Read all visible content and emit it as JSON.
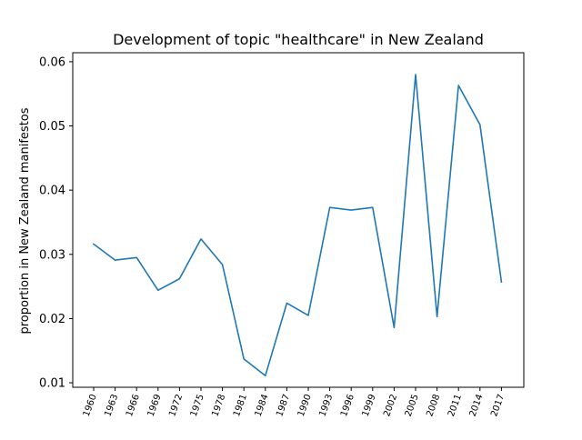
{
  "chart_data": {
    "type": "line",
    "title": "Development of topic \"healthcare\" in New Zealand",
    "xlabel": "",
    "ylabel": "proportion in New Zealand manifestos",
    "x": [
      "1960",
      "1963",
      "1966",
      "1969",
      "1972",
      "1975",
      "1978",
      "1981",
      "1984",
      "1987",
      "1990",
      "1993",
      "1996",
      "1999",
      "2002",
      "2005",
      "2008",
      "2011",
      "2014",
      "2017"
    ],
    "series": [
      {
        "values": [
          0.0316,
          0.0291,
          0.0295,
          0.0244,
          0.0262,
          0.0324,
          0.0284,
          0.0137,
          0.0111,
          0.0224,
          0.0205,
          0.0373,
          0.0369,
          0.0373,
          0.0186,
          0.058,
          0.0203,
          0.0563,
          0.0502,
          0.0257
        ],
        "color": "#1f77b4"
      }
    ],
    "yticks": [
      "0.01",
      "0.02",
      "0.03",
      "0.04",
      "0.05",
      "0.06"
    ],
    "ylim": [
      0.0093,
      0.0614
    ],
    "grid": false,
    "xtick_rotation": 70
  }
}
